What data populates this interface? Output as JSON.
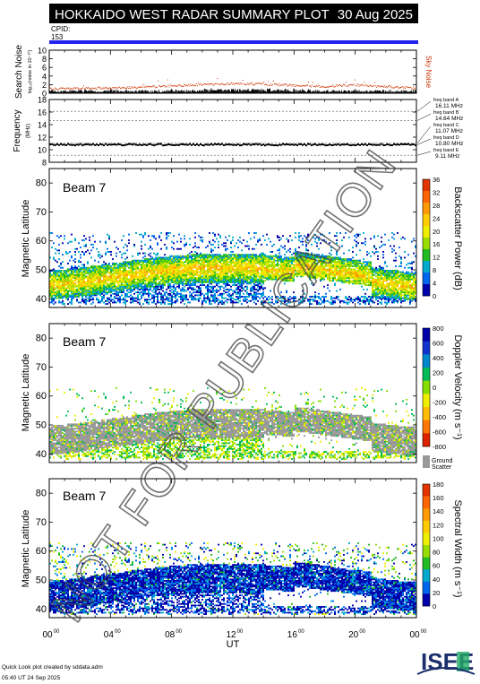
{
  "header": {
    "title": "HOKKAIDO WEST RADAR SUMMARY PLOT",
    "date": "30 Aug 2025",
    "cpid_label": "CPID:",
    "cpid_value": "153"
  },
  "colors": {
    "header_bg": "#000000",
    "cpid_bar": "#2222ee",
    "sky_noise": "#cc3300",
    "ground_scatter": "#999999"
  },
  "chart_data": [
    {
      "type": "scatter",
      "panel": "noise",
      "ylabel": "Search Noise",
      "ylabel_sub": "log₁₀(noise in 10⁻¹⁰)",
      "ylim": [
        0,
        10
      ],
      "yticks": [
        0,
        2,
        4,
        6,
        8,
        10
      ],
      "legend": "Sky Noise",
      "series": [
        {
          "name": "Sky Noise",
          "x": [
            0,
            2,
            4,
            6,
            8,
            10,
            12,
            14,
            16,
            18,
            20,
            22,
            24
          ],
          "values": [
            1.1,
            1.2,
            1.3,
            1.5,
            1.8,
            2.1,
            2.3,
            2.2,
            1.9,
            1.7,
            2.0,
            1.6,
            1.3
          ]
        }
      ]
    },
    {
      "type": "line",
      "panel": "frequency",
      "ylabel": "Frequency",
      "ylabel_sub": "(MHz)",
      "ylim": [
        8,
        18
      ],
      "yticks": [
        8,
        10,
        12,
        14,
        16,
        18
      ],
      "freq_bands": [
        {
          "label": "freq band A",
          "value": "16.11 MHz",
          "mhz": 16.11
        },
        {
          "label": "freq band B",
          "value": "14.64 MHz",
          "mhz": 14.64
        },
        {
          "label": "freq band C",
          "value": "11.07 MHz",
          "mhz": 11.07
        },
        {
          "label": "freq band D",
          "value": "10.80 MHz",
          "mhz": 10.8
        },
        {
          "label": "freq band E",
          "value": "9.11 MHz",
          "mhz": 9.11
        }
      ],
      "operating_frequency_mhz": 10.8
    },
    {
      "type": "heatmap",
      "panel": "power",
      "beam": "Beam  7",
      "ylabel": "Magnetic Latitude",
      "ylim": [
        37,
        85
      ],
      "yticks": [
        40,
        50,
        60,
        70,
        80
      ],
      "colorbar_label": "Backscatter Power (dB)",
      "colorbar_ticks": [
        "36",
        "32",
        "28",
        "24",
        "20",
        "16",
        "12",
        "8",
        "4",
        "0"
      ],
      "colorbar_colors": [
        "#e33300",
        "#ff6600",
        "#ff9900",
        "#ffcc00",
        "#eeee00",
        "#99dd00",
        "#22bb22",
        "#00aacc",
        "#0066ee",
        "#0000aa"
      ]
    },
    {
      "type": "heatmap",
      "panel": "velocity",
      "beam": "Beam  7",
      "ylabel": "Magnetic Latitude",
      "ylim": [
        37,
        85
      ],
      "yticks": [
        40,
        50,
        60,
        70,
        80
      ],
      "colorbar_label": "Doppler Velocity (m s⁻¹)",
      "colorbar_ticks": [
        "800",
        "600",
        "400",
        "200",
        "0",
        "-200",
        "-400",
        "-600",
        "-800"
      ],
      "colorbar_colors": [
        "#0000aa",
        "#1133cc",
        "#0088cc",
        "#00bb55",
        "#88dd00",
        "#eeee00",
        "#ffbb00",
        "#ff7700",
        "#dd2200"
      ],
      "ground_label_1": "Ground",
      "ground_label_2": "Scatter"
    },
    {
      "type": "heatmap",
      "panel": "width",
      "beam": "Beam  7",
      "ylabel": "Magnetic Latitude",
      "ylim": [
        37,
        85
      ],
      "yticks": [
        40,
        50,
        60,
        70,
        80
      ],
      "colorbar_label": "Spectral Width (m s⁻¹)",
      "colorbar_ticks": [
        "180",
        "160",
        "140",
        "120",
        "100",
        "80",
        "60",
        "40",
        "20",
        "0"
      ],
      "colorbar_colors": [
        "#e33300",
        "#ff6600",
        "#ff9900",
        "#ffcc00",
        "#eeee00",
        "#99dd00",
        "#22bb22",
        "#00aacc",
        "#0066ee",
        "#0000aa"
      ]
    }
  ],
  "x_axis": {
    "label": "UT",
    "ticks": [
      {
        "h": 0,
        "label": "00",
        "sup": "00"
      },
      {
        "h": 4,
        "label": "04",
        "sup": "00"
      },
      {
        "h": 8,
        "label": "08",
        "sup": "00"
      },
      {
        "h": 12,
        "label": "12",
        "sup": "00"
      },
      {
        "h": 16,
        "label": "16",
        "sup": "00"
      },
      {
        "h": 20,
        "label": "20",
        "sup": "00"
      },
      {
        "h": 24,
        "label": "00",
        "sup": "00"
      }
    ]
  },
  "footer": {
    "line1": "Quick Look plot created by sddata.adm",
    "line2": "05:40 UT 24 Sep 2025",
    "logo": "ISEE"
  },
  "watermark": "NOT FOR PUBLICATION"
}
